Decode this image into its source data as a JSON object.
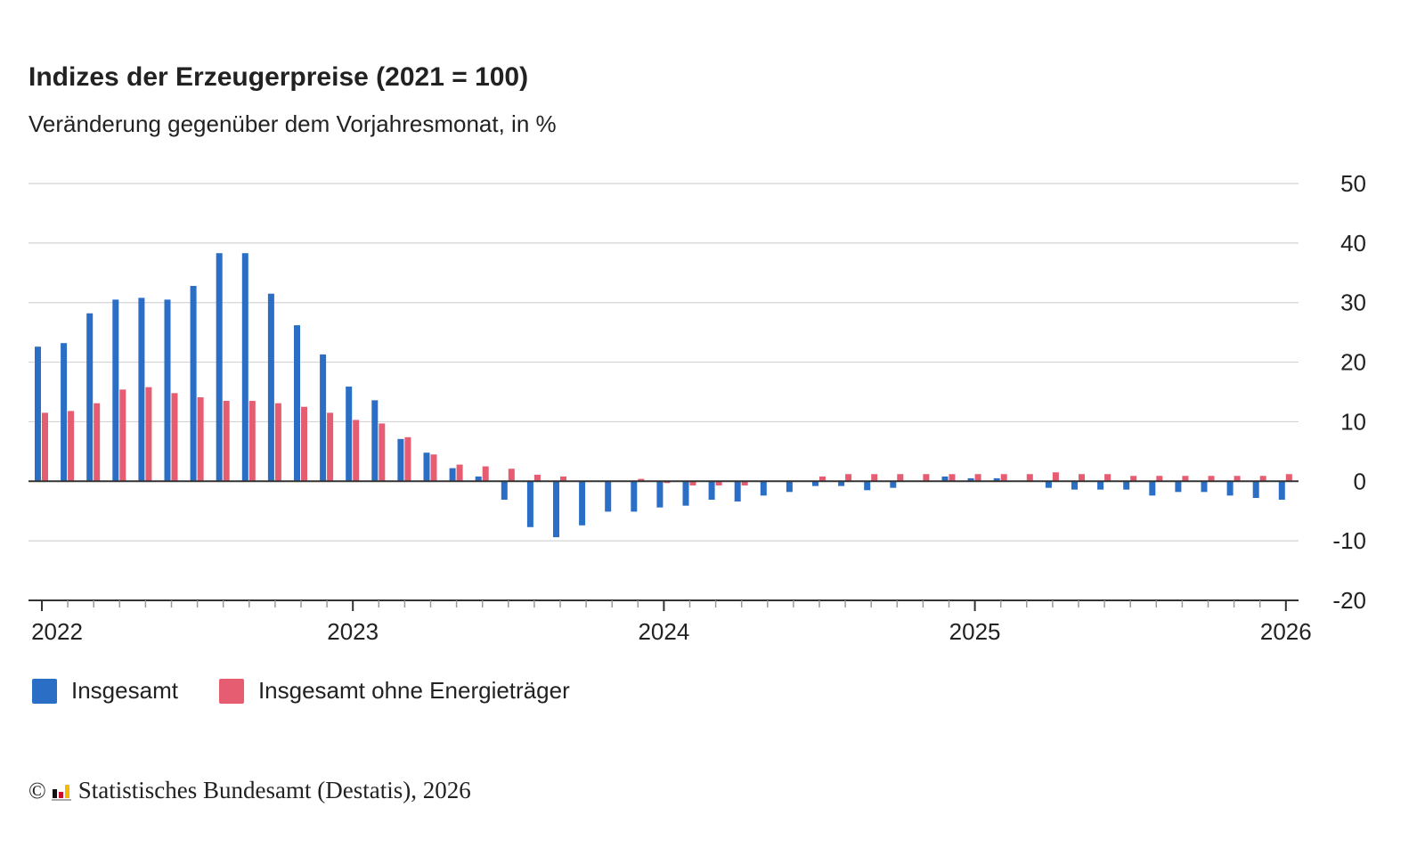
{
  "header": {
    "title": "Indizes der Erzeugerpreise (2021 = 100)",
    "subtitle": "Veränderung gegenüber dem Vorjahresmonat, in %"
  },
  "legend": {
    "items": [
      {
        "label": "Insgesamt",
        "color": "#2a6ec6"
      },
      {
        "label": "Insgesamt ohne Energieträger",
        "color": "#e65c70"
      }
    ]
  },
  "footer": {
    "copyright_symbol": "©",
    "source": "Statistisches Bundesamt (Destatis), 2026",
    "logo_icon": "destatis-logo-icon"
  },
  "chart_data": {
    "type": "bar",
    "title": "Indizes der Erzeugerpreise (2021 = 100)",
    "subtitle": "Veränderung gegenüber dem Vorjahresmonat, in %",
    "xlabel": "",
    "ylabel": "",
    "ylim": [
      -20,
      50
    ],
    "yticks": [
      50,
      40,
      30,
      20,
      10,
      0,
      -10,
      -20
    ],
    "y_axis_position": "right",
    "grid": true,
    "legend_position": "bottom-left",
    "x_tick_labels": [
      "2022",
      "2023",
      "2024",
      "2025",
      "2026"
    ],
    "categories": [
      "2022-01",
      "2022-02",
      "2022-03",
      "2022-04",
      "2022-05",
      "2022-06",
      "2022-07",
      "2022-08",
      "2022-09",
      "2022-10",
      "2022-11",
      "2022-12",
      "2023-01",
      "2023-02",
      "2023-03",
      "2023-04",
      "2023-05",
      "2023-06",
      "2023-07",
      "2023-08",
      "2023-09",
      "2023-10",
      "2023-11",
      "2023-12",
      "2024-01",
      "2024-02",
      "2024-03",
      "2024-04",
      "2024-05",
      "2024-06",
      "2024-07",
      "2024-08",
      "2024-09",
      "2024-10",
      "2024-11",
      "2024-12",
      "2025-01",
      "2025-02",
      "2025-03",
      "2025-04",
      "2025-05",
      "2025-06",
      "2025-07",
      "2025-08",
      "2025-09",
      "2025-10",
      "2025-11",
      "2025-12",
      "2026-01"
    ],
    "series": [
      {
        "name": "Insgesamt",
        "color": "#2a6ec6",
        "values": [
          22.6,
          23.2,
          28.2,
          30.5,
          30.8,
          30.5,
          32.8,
          38.3,
          38.3,
          31.5,
          26.2,
          21.3,
          15.9,
          13.6,
          7.1,
          4.8,
          2.2,
          0.8,
          -3.1,
          -7.7,
          -9.4,
          -7.4,
          -5.1,
          -5.1,
          -4.4,
          -4.1,
          -3.1,
          -3.4,
          -2.4,
          -1.8,
          -0.8,
          -0.8,
          -1.5,
          -1.1,
          0.0,
          0.8,
          0.5,
          0.5,
          0.0,
          -1.1,
          -1.4,
          -1.4,
          -1.4,
          -2.4,
          -1.8,
          -1.8,
          -2.4,
          -2.8,
          -3.1
        ]
      },
      {
        "name": "Insgesamt ohne Energieträger",
        "color": "#e65c70",
        "values": [
          11.5,
          11.8,
          13.1,
          15.4,
          15.8,
          14.8,
          14.1,
          13.5,
          13.5,
          13.1,
          12.5,
          11.5,
          10.3,
          9.7,
          7.4,
          4.5,
          2.8,
          2.5,
          2.1,
          1.1,
          0.8,
          0.1,
          0.1,
          0.4,
          -0.3,
          -0.7,
          -0.7,
          -0.7,
          0.0,
          0.1,
          0.8,
          1.2,
          1.2,
          1.2,
          1.2,
          1.2,
          1.2,
          1.2,
          1.2,
          1.5,
          1.2,
          1.2,
          0.9,
          0.9,
          0.9,
          0.9,
          0.9,
          0.9,
          1.2
        ]
      }
    ]
  }
}
